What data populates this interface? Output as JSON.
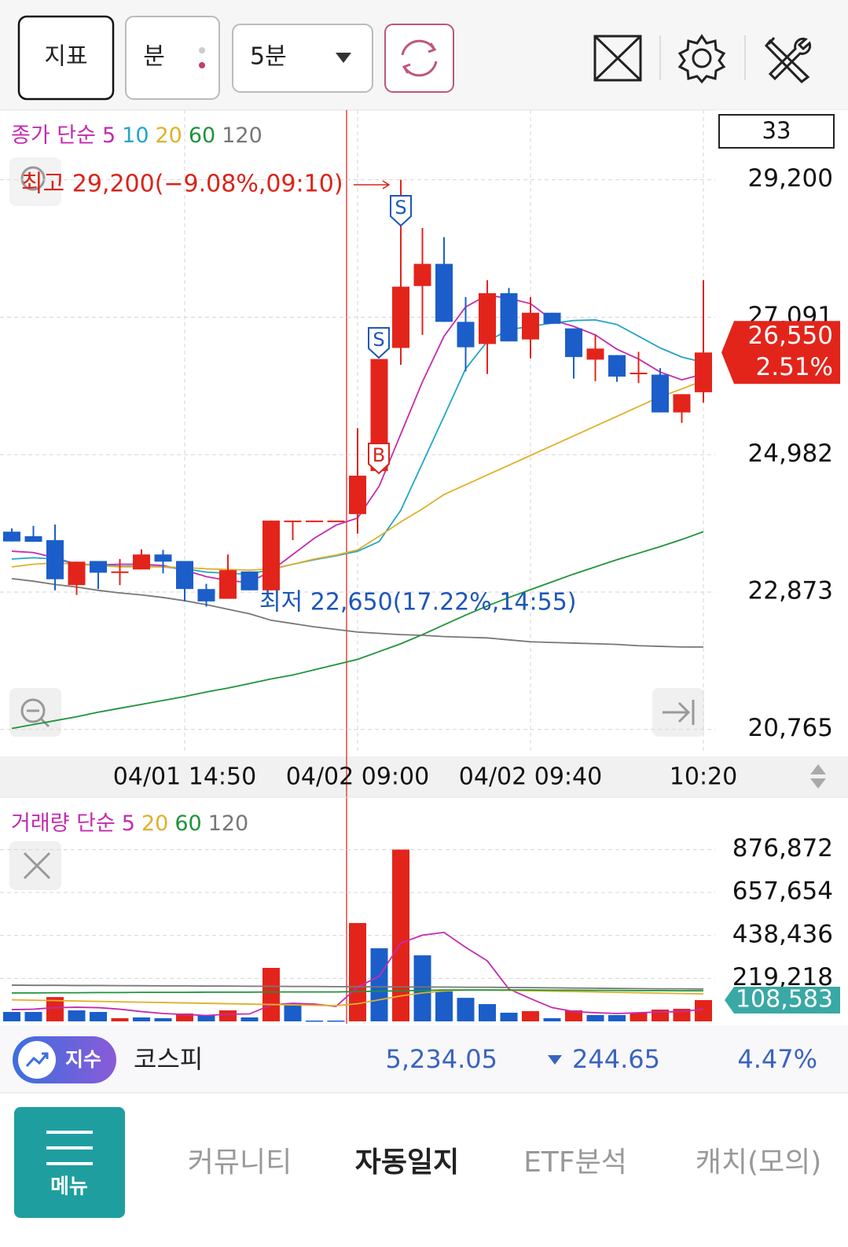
{
  "toolbar": {
    "indicator": "지표",
    "unit": "분",
    "interval": "5분"
  },
  "chart_data": [
    {
      "type": "candlestick",
      "legend_title": "종가 단순",
      "categories": [
        null,
        null,
        null,
        null,
        null,
        null,
        null,
        null,
        "04/01 14:50",
        null,
        null,
        null,
        null,
        null,
        null,
        null,
        "04/02 09:00",
        null,
        null,
        null,
        null,
        null,
        null,
        null,
        "04/02 09:40",
        null,
        null,
        null,
        null,
        null,
        null,
        null,
        "10:20"
      ],
      "open": [
        23800,
        23730,
        23670,
        22980,
        23350,
        23180,
        23220,
        23450,
        23350,
        22920,
        22770,
        23190,
        22900,
        23970,
        23970,
        23970,
        24070,
        24730,
        26620,
        27570,
        27910,
        27020,
        26680,
        27460,
        26750,
        27160,
        26920,
        26440,
        26510,
        26230,
        26210,
        25630,
        25940
      ],
      "high": [
        23850,
        23890,
        23910,
        23340,
        23350,
        23380,
        23530,
        23520,
        23350,
        23000,
        23450,
        23190,
        23970,
        23970,
        23970,
        23970,
        25390,
        26450,
        29200,
        28460,
        28320,
        27400,
        27660,
        27540,
        27400,
        27160,
        26920,
        26830,
        26510,
        26560,
        26310,
        25910,
        27660
      ],
      "low": [
        23650,
        23645,
        22900,
        22830,
        22920,
        22980,
        23220,
        23160,
        22730,
        22650,
        22770,
        22900,
        22900,
        23670,
        23970,
        23970,
        23770,
        24730,
        26360,
        26820,
        27020,
        26260,
        26220,
        26720,
        26460,
        26990,
        26150,
        26110,
        26100,
        26080,
        25630,
        25470,
        25780
      ],
      "close": [
        23650,
        23645,
        23070,
        23340,
        23170,
        23190,
        23450,
        23340,
        22920,
        22730,
        23210,
        22900,
        23970,
        23970,
        23970,
        23970,
        24660,
        26450,
        27560,
        27910,
        27020,
        26630,
        27460,
        26720,
        27160,
        26990,
        26480,
        26610,
        26180,
        26240,
        25630,
        25910,
        26550
      ],
      "up_color": "#e3241b",
      "down_color": "#1b5ec9",
      "ylim": [
        20400,
        30270
      ],
      "yticks": [
        {
          "value": 20765,
          "label": "20,765"
        },
        {
          "value": 22873,
          "label": "22,873"
        },
        {
          "value": 24982,
          "label": "24,982"
        },
        {
          "value": 27091,
          "label": "27,091"
        },
        {
          "value": 29200,
          "label": "29,200"
        }
      ],
      "grid": true,
      "ma": [
        {
          "name": "5",
          "color": "#c42bb0",
          "values": [
            23500,
            23480,
            23400,
            23300,
            23290,
            23300,
            23300,
            23280,
            23210,
            23110,
            23050,
            23020,
            23200,
            23450,
            23700,
            23900,
            24010,
            24500,
            25300,
            26100,
            26800,
            27250,
            27430,
            27380,
            27300,
            27050,
            26950,
            26820,
            26600,
            26450,
            26250,
            26130,
            26220
          ]
        },
        {
          "name": "10",
          "color": "#22a5c8",
          "values": [
            23380,
            23400,
            23380,
            23300,
            23290,
            23270,
            23270,
            23260,
            23230,
            23180,
            23160,
            23150,
            23220,
            23300,
            23370,
            23430,
            23500,
            23650,
            24130,
            24850,
            25570,
            26300,
            26720,
            26900,
            26950,
            27000,
            27040,
            27050,
            26980,
            26800,
            26620,
            26480,
            26400
          ]
        },
        {
          "name": "20",
          "color": "#e0b02a",
          "values": [
            23260,
            23300,
            23320,
            23300,
            23280,
            23260,
            23260,
            23260,
            23250,
            23230,
            23220,
            23210,
            23230,
            23300,
            23380,
            23440,
            23520,
            23730,
            23950,
            24150,
            24370,
            24520,
            24670,
            24820,
            24970,
            25120,
            25270,
            25420,
            25570,
            25720,
            25870,
            25990,
            26120
          ]
        },
        {
          "name": "60",
          "color": "#1e943a",
          "values": [
            20780,
            20840,
            20900,
            20960,
            21030,
            21090,
            21150,
            21210,
            21270,
            21340,
            21400,
            21470,
            21540,
            21600,
            21680,
            21760,
            21840,
            21960,
            22080,
            22220,
            22370,
            22520,
            22660,
            22790,
            22910,
            23030,
            23150,
            23260,
            23370,
            23470,
            23570,
            23680,
            23800
          ]
        },
        {
          "name": "120",
          "color": "#777777",
          "values": [
            23080,
            23040,
            22990,
            22950,
            22900,
            22860,
            22830,
            22790,
            22740,
            22680,
            22610,
            22540,
            22440,
            22390,
            22340,
            22300,
            22260,
            22240,
            22220,
            22210,
            22190,
            22180,
            22170,
            22140,
            22110,
            22100,
            22090,
            22080,
            22070,
            22050,
            22040,
            22030,
            22030
          ]
        }
      ],
      "count_label": "33",
      "high_annotation": "최고 29,200(−9.08%,09:10)",
      "low_annotation": "최저 22,650(17.22%,14:55)",
      "signals": [
        "S",
        "S",
        "B"
      ],
      "current": {
        "value": 26550,
        "label": "26,550"
      },
      "change": "2.51%"
    },
    {
      "type": "bar",
      "legend_title": "거래량 단순",
      "values": [
        48000,
        48000,
        124000,
        56000,
        48000,
        16000,
        20000,
        16000,
        40000,
        32000,
        56000,
        20000,
        273000,
        88000,
        4000,
        4000,
        502000,
        373000,
        876872,
        337000,
        153000,
        120000,
        88000,
        44000,
        52000,
        16000,
        56000,
        32000,
        32000,
        44000,
        60000,
        64000,
        108583
      ],
      "colors": [
        "#1b5ec9",
        "#1b5ec9",
        "#e3241b",
        "#1b5ec9",
        "#1b5ec9",
        "#e3241b",
        "#1b5ec9",
        "#1b5ec9",
        "#e3241b",
        "#1b5ec9",
        "#e3241b",
        "#1b5ec9",
        "#e3241b",
        "#1b5ec9",
        "#1b5ec9",
        "#1b5ec9",
        "#e3241b",
        "#1b5ec9",
        "#e3241b",
        "#1b5ec9",
        "#1b5ec9",
        "#1b5ec9",
        "#1b5ec9",
        "#1b5ec9",
        "#e3241b",
        "#1b5ec9",
        "#e3241b",
        "#1b5ec9",
        "#1b5ec9",
        "#e3241b",
        "#e3241b",
        "#e3241b",
        "#e3241b"
      ],
      "ylim": [
        0,
        1120000
      ],
      "yticks": [
        {
          "value": 219218,
          "label": "219,218"
        },
        {
          "value": 438436,
          "label": "438,436"
        },
        {
          "value": 657654,
          "label": "657,654"
        },
        {
          "value": 876872,
          "label": "876,872"
        }
      ],
      "grid": true,
      "ma": [
        {
          "name": "5",
          "color": "#c42bb0",
          "values": [
            60000,
            62000,
            70000,
            72000,
            70000,
            62000,
            50000,
            40000,
            35000,
            30000,
            36000,
            38000,
            84000,
            92000,
            88000,
            76000,
            175000,
            230000,
            400000,
            440000,
            454000,
            378000,
            309000,
            165000,
            116000,
            70000,
            50000,
            44000,
            40000,
            44000,
            48000,
            50000,
            62000
          ]
        },
        {
          "name": "20",
          "color": "#e0b02a",
          "values": [
            110000,
            108000,
            106000,
            104000,
            102000,
            100000,
            98000,
            96000,
            94000,
            92000,
            90000,
            88000,
            86000,
            84000,
            82000,
            80000,
            90000,
            110000,
            130000,
            145000,
            155000,
            160000,
            160000,
            158000,
            156000,
            154000,
            152000,
            150000,
            148000,
            146000,
            144000,
            142000,
            140000
          ]
        },
        {
          "name": "60",
          "color": "#1e943a",
          "values": [
            145000,
            145000,
            146000,
            146000,
            147000,
            147000,
            148000,
            148000,
            148000,
            149000,
            149000,
            149000,
            150000,
            150000,
            150000,
            150000,
            152000,
            154000,
            156000,
            158000,
            160000,
            160000,
            160000,
            160000,
            160000,
            159000,
            159000,
            158000,
            158000,
            157000,
            157000,
            156000,
            156000
          ]
        },
        {
          "name": "120",
          "color": "#777777",
          "values": [
            185000,
            184000,
            184000,
            183000,
            183000,
            182000,
            182000,
            181000,
            181000,
            180000,
            180000,
            179000,
            179000,
            178000,
            178000,
            177000,
            177000,
            176000,
            176000,
            175000,
            175000,
            174000,
            174000,
            173000,
            172000,
            171000,
            170000,
            169000,
            168000,
            167000,
            166000,
            166000,
            165000
          ]
        }
      ],
      "current": {
        "value": 108583,
        "label": "108,583"
      }
    }
  ],
  "index_bar": {
    "badge": "지수",
    "name": "코스피",
    "price": "5,234.05",
    "change": "244.65",
    "rate": "4.47%"
  },
  "nav": {
    "menu": "메뉴",
    "tabs": [
      "커뮤니티",
      "자동일지",
      "ETF분석",
      "캐치(모의)"
    ]
  }
}
